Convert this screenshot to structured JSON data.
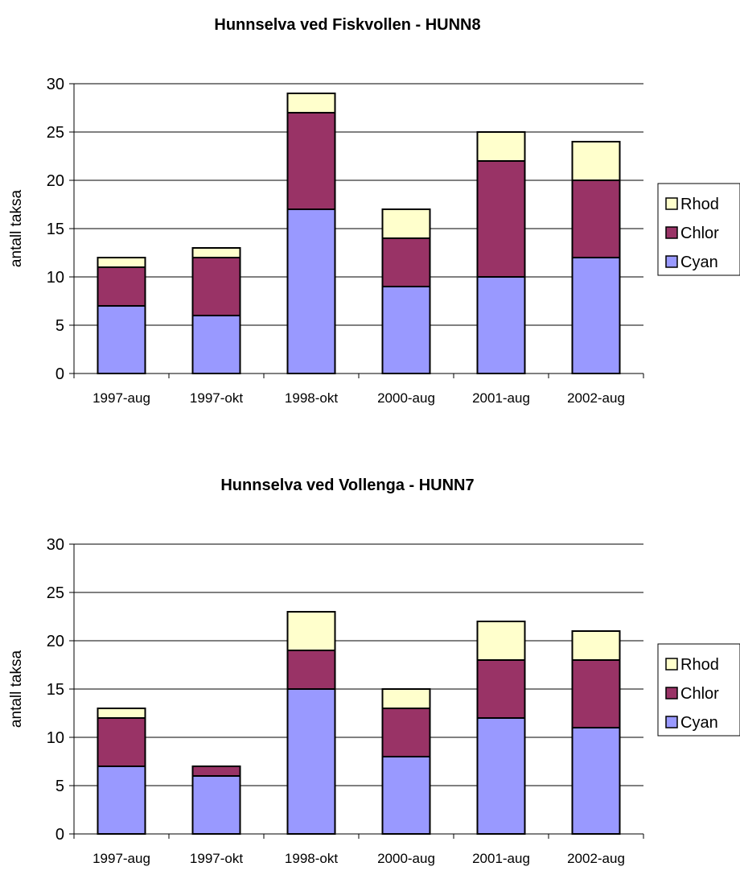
{
  "chart_data": [
    {
      "type": "bar",
      "stacked": true,
      "title": "Hunnselva ved Fiskvollen - HUNN8",
      "xlabel": "",
      "ylabel": "antall taksa",
      "ylim": [
        0,
        30
      ],
      "yticks": [
        0,
        5,
        10,
        15,
        20,
        25,
        30
      ],
      "grid": true,
      "legend_position": "right",
      "categories": [
        "1997-aug",
        "1997-okt",
        "1998-okt",
        "2000-aug",
        "2001-aug",
        "2002-aug"
      ],
      "series": [
        {
          "name": "Cyan",
          "color": "#9999ff",
          "values": [
            7,
            6,
            17,
            9,
            10,
            12
          ]
        },
        {
          "name": "Chlor",
          "color": "#993366",
          "values": [
            4,
            6,
            10,
            5,
            12,
            8
          ]
        },
        {
          "name": "Rhod",
          "color": "#ffffcc",
          "values": [
            1,
            1,
            2,
            3,
            3,
            4
          ]
        }
      ],
      "legend_order": [
        "Rhod",
        "Chlor",
        "Cyan"
      ]
    },
    {
      "type": "bar",
      "stacked": true,
      "title": "Hunnselva ved Vollenga - HUNN7",
      "xlabel": "",
      "ylabel": "antall taksa",
      "ylim": [
        0,
        30
      ],
      "yticks": [
        0,
        5,
        10,
        15,
        20,
        25,
        30
      ],
      "grid": true,
      "legend_position": "right",
      "categories": [
        "1997-aug",
        "1997-okt",
        "1998-okt",
        "2000-aug",
        "2001-aug",
        "2002-aug"
      ],
      "series": [
        {
          "name": "Cyan",
          "color": "#9999ff",
          "values": [
            7,
            6,
            15,
            8,
            12,
            11
          ]
        },
        {
          "name": "Chlor",
          "color": "#993366",
          "values": [
            5,
            1,
            4,
            5,
            6,
            7
          ]
        },
        {
          "name": "Rhod",
          "color": "#ffffcc",
          "values": [
            1,
            0,
            4,
            2,
            4,
            3
          ]
        }
      ],
      "legend_order": [
        "Rhod",
        "Chlor",
        "Cyan"
      ]
    }
  ]
}
